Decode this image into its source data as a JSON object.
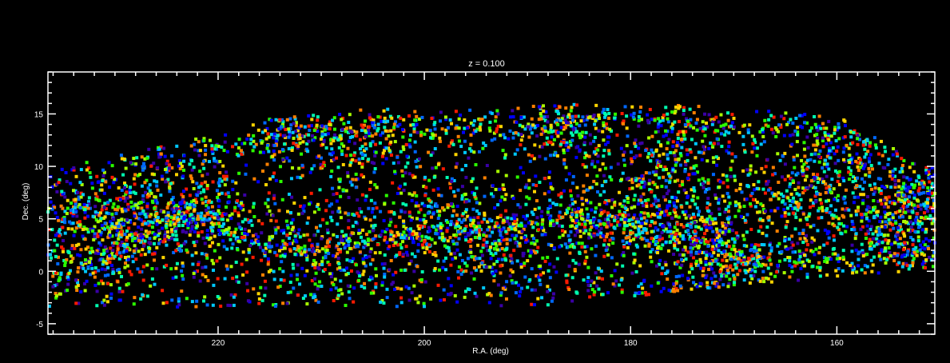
{
  "chart_data": {
    "type": "scatter",
    "title": "z = 0.100",
    "xlabel": "R.A. (deg)",
    "ylabel": "Dec. (deg)",
    "xlim": [
      236.5,
      150.5
    ],
    "ylim": [
      -6,
      19
    ],
    "x_ticks": [
      220,
      200,
      180,
      160
    ],
    "x_tick_labels": [
      "220",
      "200",
      "180",
      "160"
    ],
    "y_ticks": [
      -5,
      0,
      5,
      10,
      15
    ],
    "y_tick_labels": [
      "-5",
      "0",
      "5",
      "10",
      "15"
    ],
    "grid": false,
    "legend": "none",
    "background_color": "#000000",
    "axis_color": "#ffffff",
    "point_colors": [
      "#3a00a6",
      "#0000ff",
      "#0068ff",
      "#00c8ff",
      "#00ffb0",
      "#2bff00",
      "#a8ff00",
      "#ffd400",
      "#ff8000",
      "#ff1a00"
    ],
    "footprint_approx": {
      "ra_range": [
        236.5,
        150.5
      ],
      "dec_bottom": -3.5,
      "dec_top_profile": [
        [
          236.5,
          10.5
        ],
        [
          230,
          11
        ],
        [
          225,
          12.5
        ],
        [
          220,
          13
        ],
        [
          215,
          14.5
        ],
        [
          205,
          15.5
        ],
        [
          195,
          15.5
        ],
        [
          185,
          16
        ],
        [
          175,
          15.8
        ],
        [
          165,
          15.3
        ],
        [
          160,
          14.8
        ],
        [
          155,
          12
        ],
        [
          150.5,
          10
        ]
      ],
      "bottom_edge_note": "lower boundary rises to about -1 near R.A. 170 and 0 near R.A. 151"
    },
    "point_density": "approximately 3000 galaxies shown as small squares colored by a rainbow colormap"
  }
}
